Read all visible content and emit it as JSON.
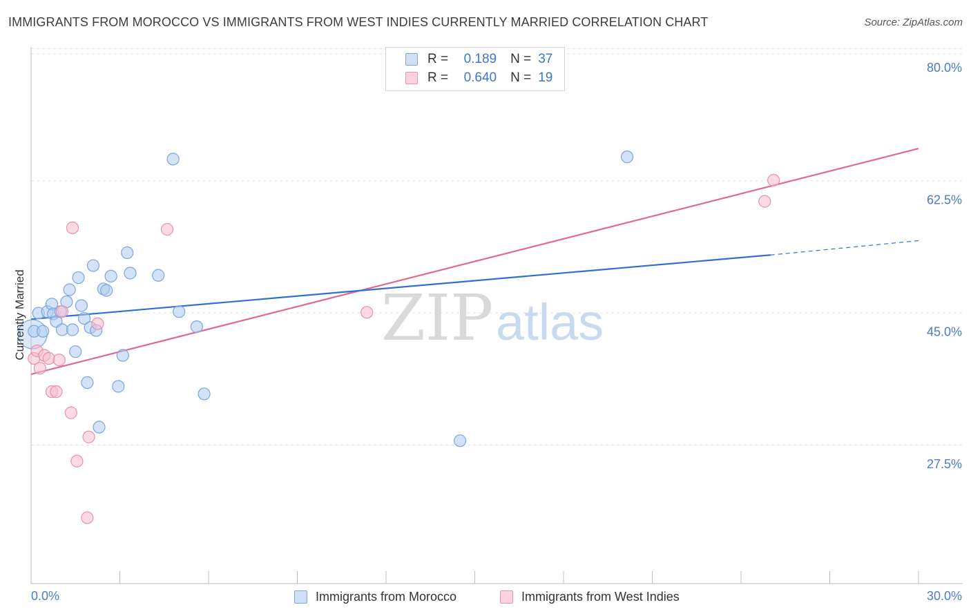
{
  "title": "IMMIGRANTS FROM MOROCCO VS IMMIGRANTS FROM WEST INDIES CURRENTLY MARRIED CORRELATION CHART",
  "source": "Source: ZipAtlas.com",
  "watermark": {
    "zip": "ZIP",
    "atlas": "atlas"
  },
  "legend": {
    "r_label": "R =",
    "n_label": "N =",
    "morocco": {
      "r": "0.189",
      "n": "37",
      "color": "#aecbf0",
      "border": "#7aa6dc"
    },
    "west_indies": {
      "r": "0.640",
      "n": "19",
      "color": "#f7bccd",
      "border": "#e891ab"
    }
  },
  "chart_data": {
    "type": "scatter",
    "ylabel": "Currently Married",
    "xlim": [
      0,
      30
    ],
    "ylim": [
      13,
      83
    ],
    "x_ticks": [
      "0.0%",
      "30.0%"
    ],
    "y_ticks": [
      {
        "value": 80.0,
        "label": "80.0%"
      },
      {
        "value": 62.5,
        "label": "62.5%"
      },
      {
        "value": 45.0,
        "label": "45.0%"
      },
      {
        "value": 27.5,
        "label": "27.5%"
      }
    ],
    "grid": "horizontal dashed",
    "series": [
      {
        "name": "Immigrants from Morocco",
        "color": "#aecbf0",
        "stroke": "#7aa6dc",
        "line_color": "#2f6fcf",
        "trend": {
          "x0": 0.0,
          "y0": 46.6,
          "x1": 25.0,
          "y1": 55.1,
          "x_dash_end": 30.0,
          "y_dash_end": 57.0
        },
        "points": [
          [
            0.1,
            45.0
          ],
          [
            0.25,
            47.4
          ],
          [
            0.4,
            45.0
          ],
          [
            0.55,
            47.6
          ],
          [
            0.7,
            48.6
          ],
          [
            0.75,
            47.3
          ],
          [
            0.85,
            46.3
          ],
          [
            1.0,
            47.6
          ],
          [
            1.05,
            45.2
          ],
          [
            1.2,
            48.9
          ],
          [
            1.3,
            50.5
          ],
          [
            1.4,
            45.2
          ],
          [
            1.5,
            42.3
          ],
          [
            1.6,
            52.1
          ],
          [
            1.7,
            48.4
          ],
          [
            1.8,
            46.7
          ],
          [
            1.9,
            38.2
          ],
          [
            2.0,
            45.5
          ],
          [
            2.1,
            53.7
          ],
          [
            2.2,
            45.1
          ],
          [
            2.3,
            32.3
          ],
          [
            2.45,
            50.6
          ],
          [
            2.55,
            50.4
          ],
          [
            2.7,
            52.3
          ],
          [
            2.95,
            37.7
          ],
          [
            3.1,
            41.8
          ],
          [
            3.25,
            55.4
          ],
          [
            3.35,
            52.7
          ],
          [
            4.3,
            52.4
          ],
          [
            4.8,
            67.8
          ],
          [
            5.0,
            47.6
          ],
          [
            5.6,
            45.6
          ],
          [
            5.85,
            36.7
          ],
          [
            14.5,
            30.5
          ],
          [
            20.15,
            68.1
          ]
        ],
        "large_point": [
          0.05,
          44.6
        ]
      },
      {
        "name": "Immigrants from West Indies",
        "color": "#f7bccd",
        "stroke": "#e891ab",
        "line_color": "#e06894",
        "trend": {
          "x0": 0.0,
          "y0": 39.3,
          "x1": 30.0,
          "y1": 69.2
        },
        "points": [
          [
            0.1,
            41.4
          ],
          [
            0.2,
            42.4
          ],
          [
            0.3,
            40.1
          ],
          [
            0.45,
            41.8
          ],
          [
            0.6,
            41.4
          ],
          [
            0.7,
            37.0
          ],
          [
            0.85,
            37.0
          ],
          [
            0.95,
            41.2
          ],
          [
            1.05,
            47.6
          ],
          [
            1.35,
            34.2
          ],
          [
            1.4,
            58.7
          ],
          [
            1.55,
            27.8
          ],
          [
            1.9,
            20.3
          ],
          [
            1.95,
            31.0
          ],
          [
            2.25,
            46.0
          ],
          [
            4.6,
            58.5
          ],
          [
            11.35,
            47.5
          ],
          [
            24.8,
            62.2
          ],
          [
            25.1,
            65.0
          ]
        ]
      }
    ]
  }
}
